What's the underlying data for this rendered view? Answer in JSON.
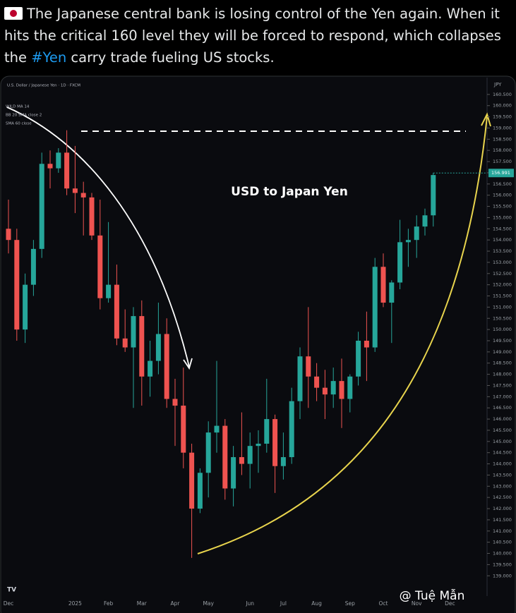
{
  "post": {
    "text": [
      "The Japanese central bank is losing control of the Yen again. When it hits the critical 160 level they will be forced to respond, which collapses the ",
      "#Yen",
      " carry trade fueling US stocks."
    ]
  },
  "watermark": "@ Tuệ Mẫn",
  "chart_data": {
    "type": "candlestick",
    "title": "USD to Japan Yen",
    "legend": [
      "U.S. Dollar / Japanese Yen · 1D · FXCM",
      "WILD MA 14",
      "BB 20 SMA close 2",
      "SMA 60 close"
    ],
    "axis_unit": "JPY",
    "up_color": "#26a69a",
    "down_color": "#ef5350",
    "categories": [
      "Dec",
      null,
      null,
      null,
      null,
      null,
      null,
      null,
      "2025",
      null,
      null,
      null,
      "Feb",
      null,
      null,
      null,
      "Mar",
      null,
      null,
      null,
      "Apr",
      null,
      null,
      null,
      "May",
      null,
      null,
      null,
      null,
      "Jun",
      null,
      null,
      null,
      "Jul",
      null,
      null,
      null,
      "Aug",
      null,
      null,
      null,
      "Sep",
      null,
      null,
      null,
      "Oct",
      null,
      null,
      null,
      "Nov",
      null,
      null,
      null,
      "Dec"
    ],
    "open": [
      154.5,
      154.0,
      150.0,
      152.0,
      153.6,
      157.4,
      157.2,
      157.9,
      156.3,
      156.1,
      155.9,
      154.2,
      151.4,
      152.0,
      149.6,
      149.2,
      150.6,
      147.9,
      148.6,
      149.8,
      146.9,
      146.6,
      144.5,
      142.0,
      143.6,
      145.4,
      145.7,
      142.9,
      144.3,
      144.0,
      144.8,
      144.9,
      146.0,
      143.9,
      144.3,
      146.8,
      148.8,
      147.9,
      147.4,
      147.1,
      147.7,
      146.9,
      147.9,
      149.5,
      149.2,
      152.8,
      151.2,
      152.1,
      153.9,
      154.0,
      154.6,
      155.1,
      null,
      null
    ],
    "high": [
      155.8,
      154.5,
      152.5,
      154.0,
      157.9,
      158.0,
      158.1,
      158.9,
      158.2,
      156.6,
      156.1,
      155.8,
      154.8,
      152.9,
      150.9,
      151.0,
      151.3,
      149.5,
      151.2,
      150.5,
      147.8,
      148.3,
      144.9,
      143.8,
      145.9,
      148.6,
      146.0,
      144.8,
      146.3,
      145.4,
      145.5,
      147.8,
      146.2,
      145.4,
      147.4,
      149.2,
      151.0,
      148.5,
      148.2,
      148.3,
      148.7,
      148.0,
      149.9,
      150.8,
      153.2,
      153.4,
      152.2,
      154.9,
      154.5,
      155.1,
      155.4,
      157.0,
      null,
      null
    ],
    "low": [
      153.4,
      149.5,
      149.4,
      151.5,
      153.2,
      156.3,
      157.0,
      156.0,
      155.2,
      154.2,
      154.0,
      150.9,
      151.2,
      149.3,
      149.0,
      146.5,
      146.6,
      147.0,
      148.0,
      146.5,
      144.8,
      143.8,
      139.8,
      141.8,
      142.5,
      144.5,
      142.4,
      142.1,
      143.5,
      142.9,
      143.6,
      144.5,
      142.7,
      143.3,
      144.0,
      146.0,
      146.5,
      146.8,
      146.0,
      146.5,
      145.6,
      146.3,
      147.5,
      147.7,
      149.0,
      151.0,
      149.4,
      151.8,
      152.8,
      153.2,
      154.2,
      154.6,
      null,
      null
    ],
    "close": [
      154.0,
      150.0,
      152.0,
      153.6,
      157.4,
      157.2,
      157.9,
      156.3,
      156.1,
      155.9,
      154.2,
      151.4,
      152.0,
      149.6,
      149.2,
      150.6,
      147.9,
      148.6,
      149.8,
      146.9,
      146.6,
      144.5,
      142.0,
      143.6,
      145.4,
      145.7,
      142.9,
      144.3,
      144.0,
      144.8,
      144.9,
      146.0,
      143.9,
      144.3,
      146.8,
      148.8,
      147.9,
      147.4,
      147.1,
      147.7,
      146.9,
      147.9,
      149.5,
      149.2,
      152.8,
      151.2,
      152.1,
      153.9,
      154.0,
      154.6,
      155.1,
      156.9,
      null,
      null
    ],
    "last_price": 156.991,
    "ylim": [
      138.0,
      161.0
    ],
    "yticks": [
      {
        "value": 139,
        "label": "139.000"
      },
      {
        "value": 139.5,
        "label": "139.500"
      },
      {
        "value": 140,
        "label": "140.000"
      },
      {
        "value": 140.5,
        "label": "140.500"
      },
      {
        "value": 141,
        "label": "141.000"
      },
      {
        "value": 141.5,
        "label": "141.500"
      },
      {
        "value": 142,
        "label": "142.000"
      },
      {
        "value": 142.5,
        "label": "142.500"
      },
      {
        "value": 143,
        "label": "143.000"
      },
      {
        "value": 143.5,
        "label": "143.500"
      },
      {
        "value": 144,
        "label": "144.000"
      },
      {
        "value": 144.5,
        "label": "144.500"
      },
      {
        "value": 145,
        "label": "145.000"
      },
      {
        "value": 145.5,
        "label": "145.500"
      },
      {
        "value": 146,
        "label": "146.000"
      },
      {
        "value": 146.5,
        "label": "146.500"
      },
      {
        "value": 147,
        "label": "147.000"
      },
      {
        "value": 147.5,
        "label": "147.500"
      },
      {
        "value": 148,
        "label": "148.000"
      },
      {
        "value": 148.5,
        "label": "148.500"
      },
      {
        "value": 149,
        "label": "149.000"
      },
      {
        "value": 149.5,
        "label": "149.500"
      },
      {
        "value": 150,
        "label": "150.000"
      },
      {
        "value": 150.5,
        "label": "150.500"
      },
      {
        "value": 151,
        "label": "151.000"
      },
      {
        "value": 151.5,
        "label": "151.500"
      },
      {
        "value": 152,
        "label": "152.000"
      },
      {
        "value": 152.5,
        "label": "152.500"
      },
      {
        "value": 153,
        "label": "153.000"
      },
      {
        "value": 153.5,
        "label": "153.500"
      },
      {
        "value": 154,
        "label": "154.000"
      },
      {
        "value": 154.5,
        "label": "154.500"
      },
      {
        "value": 155,
        "label": "155.000"
      },
      {
        "value": 155.5,
        "label": "155.500"
      },
      {
        "value": 156,
        "label": "156.000"
      },
      {
        "value": 156.5,
        "label": "156.500"
      },
      {
        "value": 157,
        "label": "157.000"
      },
      {
        "value": 157.5,
        "label": "157.500"
      },
      {
        "value": 158,
        "label": "158.000"
      },
      {
        "value": 158.5,
        "label": "158.500"
      },
      {
        "value": 159,
        "label": "159.000"
      },
      {
        "value": 159.5,
        "label": "159.500"
      },
      {
        "value": 160,
        "label": "160.000"
      },
      {
        "value": 160.5,
        "label": "160.500"
      }
    ]
  }
}
